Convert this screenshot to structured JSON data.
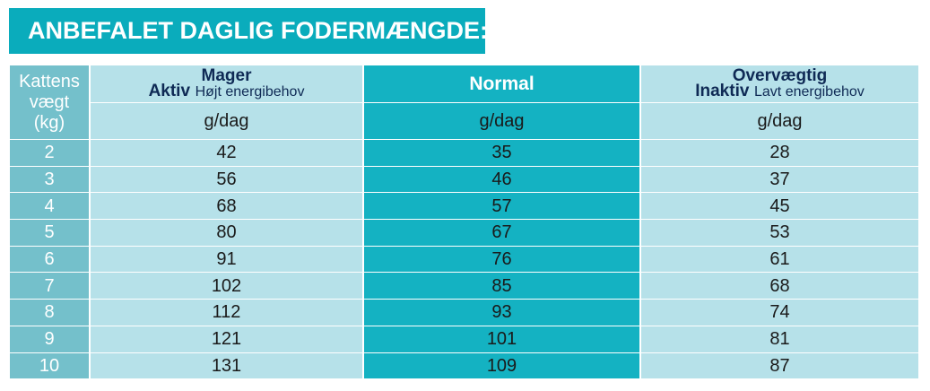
{
  "title": "ANBEFALET DAGLIG FODERMÆNGDE:",
  "weight_header": [
    "Kattens",
    "vægt",
    "(kg)"
  ],
  "columns": [
    {
      "top": "Mager",
      "sub_bold": "Aktiv",
      "sub_normal": "Højt energibehov",
      "unit": "g/dag"
    },
    {
      "top": "Normal",
      "sub_bold": "",
      "sub_normal": "",
      "unit": "g/dag"
    },
    {
      "top": "Overvægtig",
      "sub_bold": "Inaktiv",
      "sub_normal": "Lavt energibehov",
      "unit": "g/dag"
    }
  ],
  "rows": [
    {
      "weight": "2",
      "values": [
        "42",
        "35",
        "28"
      ]
    },
    {
      "weight": "3",
      "values": [
        "56",
        "46",
        "37"
      ]
    },
    {
      "weight": "4",
      "values": [
        "68",
        "57",
        "45"
      ]
    },
    {
      "weight": "5",
      "values": [
        "80",
        "67",
        "53"
      ]
    },
    {
      "weight": "6",
      "values": [
        "91",
        "76",
        "61"
      ]
    },
    {
      "weight": "7",
      "values": [
        "102",
        "85",
        "68"
      ]
    },
    {
      "weight": "8",
      "values": [
        "112",
        "93",
        "74"
      ]
    },
    {
      "weight": "9",
      "values": [
        "121",
        "101",
        "81"
      ]
    },
    {
      "weight": "10",
      "values": [
        "131",
        "109",
        "87"
      ]
    }
  ],
  "colors": {
    "banner": "#0aacbc",
    "weight_column": "#74c0cb",
    "light_column": "#b6e1e9",
    "normal_column": "#14b2c2"
  }
}
